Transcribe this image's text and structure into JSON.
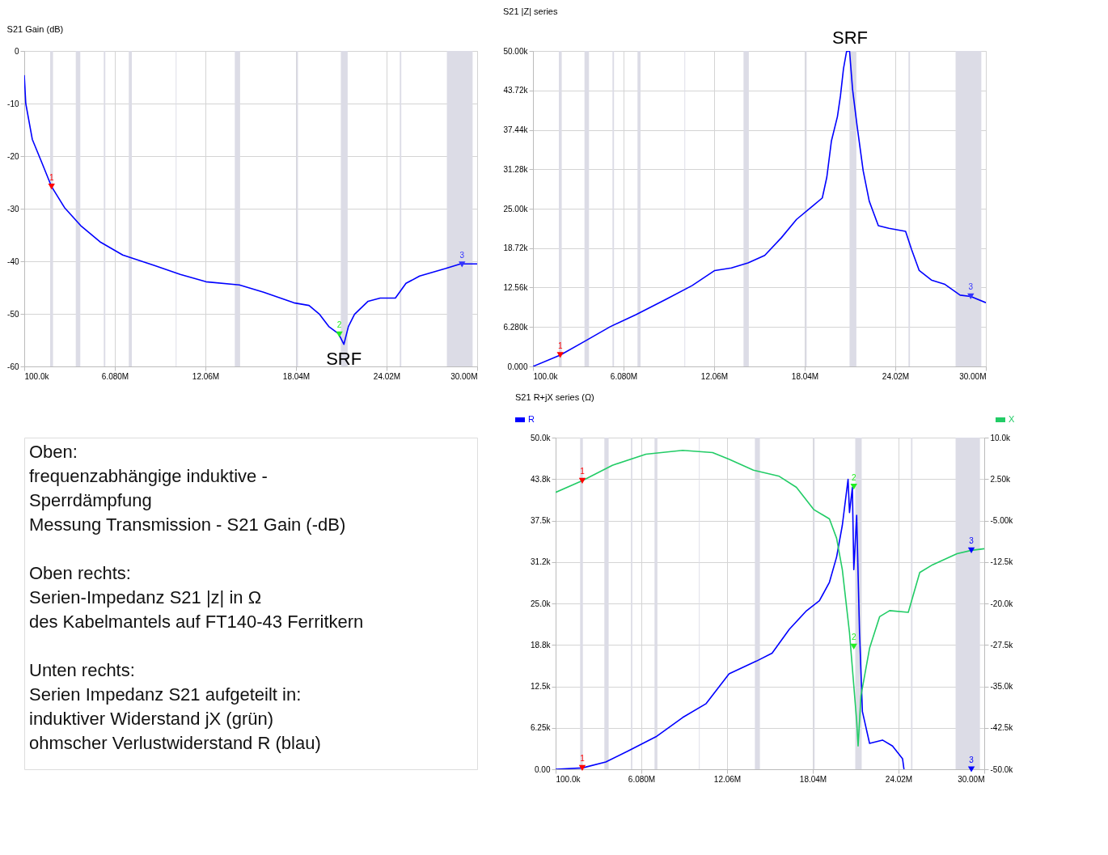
{
  "chart_data": [
    {
      "type": "line",
      "title": "S21 Gain (dB)",
      "grid": true,
      "xlim": [
        100000,
        30000000
      ],
      "xticks": [
        {
          "value": 100000,
          "label": "100.0k"
        },
        {
          "value": 6080000,
          "label": "6.080M"
        },
        {
          "value": 12060000,
          "label": "12.06M"
        },
        {
          "value": 18040000,
          "label": "18.04M"
        },
        {
          "value": 24020000,
          "label": "24.02M"
        },
        {
          "value": 30000000,
          "label": "30.00M"
        }
      ],
      "ylim": [
        -60,
        0
      ],
      "yticks": [
        -60,
        -50,
        -40,
        -30,
        -20,
        -10,
        0
      ],
      "bands": [
        {
          "axis": "x",
          "from": 1810000,
          "to": 2000000
        },
        {
          "axis": "x",
          "from": 3500000,
          "to": 3800000
        },
        {
          "axis": "x",
          "from": 5350000,
          "to": 5450000
        },
        {
          "axis": "x",
          "from": 7000000,
          "to": 7200000
        },
        {
          "axis": "x",
          "from": 10100000,
          "to": 10150000
        },
        {
          "axis": "x",
          "from": 14000000,
          "to": 14350000
        },
        {
          "axis": "x",
          "from": 18070000,
          "to": 18170000
        },
        {
          "axis": "x",
          "from": 21000000,
          "to": 21450000
        },
        {
          "axis": "x",
          "from": 24890000,
          "to": 24990000
        },
        {
          "axis": "x",
          "from": 28000000,
          "to": 29700000
        }
      ],
      "series": [
        {
          "type": "line",
          "color": "#0000ff",
          "x": [
            100000,
            200000,
            630000,
            1270000,
            1900000,
            2760000,
            3820000,
            5100000,
            6600000,
            8700000,
            10400000,
            12100000,
            14300000,
            15900000,
            17900000,
            18900000,
            19600000,
            20200000,
            20850000,
            21200000,
            21500000,
            21900000,
            22800000,
            23600000,
            24600000,
            25300000,
            26200000,
            27900000,
            28900000,
            30000000
          ],
          "values": [
            -4.6,
            -10,
            -16.8,
            -21.3,
            -25.8,
            -29.8,
            -33.2,
            -36.3,
            -38.8,
            -40.8,
            -42.5,
            -43.9,
            -44.5,
            -45.9,
            -47.9,
            -48.4,
            -50.1,
            -52.4,
            -53.8,
            -55.8,
            -52.4,
            -50.1,
            -47.6,
            -47.0,
            -47.0,
            -44.2,
            -42.8,
            -41.4,
            -40.5,
            -40.5
          ]
        },
        {
          "type": "scatter",
          "name": "1",
          "marker": "triangle",
          "color": "#ff0000",
          "x": [
            1900000
          ],
          "values": [
            -25.8
          ]
        },
        {
          "type": "scatter",
          "name": "2",
          "marker": "triangle",
          "color": "#22ee22",
          "x": [
            20900000
          ],
          "values": [
            -53.9
          ]
        },
        {
          "type": "scatter",
          "name": "3",
          "marker": "triangle",
          "color": "#3333ff",
          "x": [
            29000000
          ],
          "values": [
            -40.6
          ]
        }
      ],
      "annotations": [
        {
          "text": "SRF",
          "x": 21200000,
          "y": -58.6
        }
      ]
    },
    {
      "type": "line",
      "title": "S21 |Z| series",
      "grid": true,
      "xlim": [
        100000,
        30000000
      ],
      "xticks": [
        {
          "value": 100000,
          "label": "100.0k"
        },
        {
          "value": 6080000,
          "label": "6.080M"
        },
        {
          "value": 12060000,
          "label": "12.06M"
        },
        {
          "value": 18040000,
          "label": "18.04M"
        },
        {
          "value": 24020000,
          "label": "24.02M"
        },
        {
          "value": 30000000,
          "label": "30.00M"
        }
      ],
      "ylim": [
        0,
        50000
      ],
      "yticks": [
        {
          "value": 0,
          "label": "0.000"
        },
        {
          "value": 6280,
          "label": "6.280k"
        },
        {
          "value": 12560,
          "label": "12.56k"
        },
        {
          "value": 18720,
          "label": "18.72k"
        },
        {
          "value": 25000,
          "label": "25.00k"
        },
        {
          "value": 31280,
          "label": "31.28k"
        },
        {
          "value": 37440,
          "label": "37.44k"
        },
        {
          "value": 43720,
          "label": "43.72k"
        },
        {
          "value": 50000,
          "label": "50.00k"
        }
      ],
      "bands": [
        {
          "axis": "x",
          "from": 1810000,
          "to": 2000000
        },
        {
          "axis": "x",
          "from": 3500000,
          "to": 3800000
        },
        {
          "axis": "x",
          "from": 5350000,
          "to": 5450000
        },
        {
          "axis": "x",
          "from": 7000000,
          "to": 7200000
        },
        {
          "axis": "x",
          "from": 10100000,
          "to": 10150000
        },
        {
          "axis": "x",
          "from": 14000000,
          "to": 14350000
        },
        {
          "axis": "x",
          "from": 18070000,
          "to": 18170000
        },
        {
          "axis": "x",
          "from": 21000000,
          "to": 21450000
        },
        {
          "axis": "x",
          "from": 24890000,
          "to": 24990000
        },
        {
          "axis": "x",
          "from": 28000000,
          "to": 29700000
        }
      ],
      "series": [
        {
          "type": "line",
          "color": "#0000ff",
          "x": [
            100000,
            1900000,
            3450000,
            5200000,
            6900000,
            8860000,
            10600000,
            12100000,
            13200000,
            14300000,
            15400000,
            16500000,
            17500000,
            18600000,
            19200000,
            19500000,
            19800000,
            20200000,
            20400000,
            20600000,
            20800000,
            21000000,
            21200000,
            21500000,
            21900000,
            22300000,
            22900000,
            23600000,
            24700000,
            25100000,
            25600000,
            26400000,
            27300000,
            28300000,
            29000000,
            30000000
          ],
          "values": [
            0,
            1800,
            3900,
            6300,
            8200,
            10600,
            12800,
            15200,
            15600,
            16400,
            17600,
            20400,
            23300,
            25500,
            26700,
            30000,
            35700,
            39600,
            42900,
            47200,
            49900,
            50000,
            43900,
            38100,
            31000,
            26200,
            22300,
            21900,
            21400,
            18500,
            15200,
            13700,
            13000,
            11300,
            11100,
            10100
          ]
        },
        {
          "type": "scatter",
          "name": "1",
          "marker": "triangle",
          "color": "#ff0000",
          "x": [
            1900000
          ],
          "values": [
            1800
          ]
        },
        {
          "type": "scatter",
          "name": "3",
          "marker": "triangle",
          "color": "#3333ff",
          "x": [
            29000000
          ],
          "values": [
            11100
          ]
        }
      ],
      "annotations": [
        "SRF"
      ]
    },
    {
      "type": "other",
      "annotations": [
        "Oben:\nfrequenzabhängige induktive -\nSperrdämpfung\nMessung Transmission - S21 Gain (-dB)",
        "Oben rechts:\nSerien-Impedanz S21 |z| in Ω\ndes Kabelmantels auf FT140-43 Ferritkern",
        "Unten rechts:\nSerien Impedanz S21 aufgeteilt in:\ninduktiver Widerstand jX (grün)\nohmscher Verlustwiderstand R (blau)"
      ]
    },
    {
      "type": "line",
      "title": "S21 R+jX series (Ω)",
      "grid": true,
      "legend": "top",
      "xlim": [
        100000,
        30000000
      ],
      "xticks": [
        {
          "value": 100000,
          "label": "100.0k"
        },
        {
          "value": 6080000,
          "label": "6.080M"
        },
        {
          "value": 12060000,
          "label": "12.06M"
        },
        {
          "value": 18040000,
          "label": "18.04M"
        },
        {
          "value": 24020000,
          "label": "24.02M"
        },
        {
          "value": 30000000,
          "label": "30.00M"
        }
      ],
      "ylim": [
        0,
        50000
      ],
      "yticks": [
        {
          "value": 0,
          "label": "0.00"
        },
        {
          "value": 6250,
          "label": "6.25k"
        },
        {
          "value": 12500,
          "label": "12.5k"
        },
        {
          "value": 18750,
          "label": "18.8k"
        },
        {
          "value": 25000,
          "label": "25.0k"
        },
        {
          "value": 31250,
          "label": "31.2k"
        },
        {
          "value": 37500,
          "label": "37.5k"
        },
        {
          "value": 43750,
          "label": "43.8k"
        },
        {
          "value": 50000,
          "label": "50.0k"
        }
      ],
      "y2lim": [
        -50000,
        10000
      ],
      "y2ticks": [
        {
          "value": -50000,
          "label": "-50.0k"
        },
        {
          "value": -42500,
          "label": "-42.5k"
        },
        {
          "value": -35000,
          "label": "-35.0k"
        },
        {
          "value": -27500,
          "label": "-27.5k"
        },
        {
          "value": -20000,
          "label": "-20.0k"
        },
        {
          "value": -12500,
          "label": "-12.5k"
        },
        {
          "value": -5000,
          "label": "-5.00k"
        },
        {
          "value": 2500,
          "label": "2.50k"
        },
        {
          "value": 10000,
          "label": "10.0k"
        }
      ],
      "bands": [
        {
          "axis": "x",
          "from": 1810000,
          "to": 2000000
        },
        {
          "axis": "x",
          "from": 3500000,
          "to": 3800000
        },
        {
          "axis": "x",
          "from": 5350000,
          "to": 5450000
        },
        {
          "axis": "x",
          "from": 7000000,
          "to": 7200000
        },
        {
          "axis": "x",
          "from": 10100000,
          "to": 10150000
        },
        {
          "axis": "x",
          "from": 14000000,
          "to": 14350000
        },
        {
          "axis": "x",
          "from": 18070000,
          "to": 18170000
        },
        {
          "axis": "x",
          "from": 21000000,
          "to": 21450000
        },
        {
          "axis": "x",
          "from": 24890000,
          "to": 24990000
        },
        {
          "axis": "x",
          "from": 28000000,
          "to": 29700000
        }
      ],
      "series": [
        {
          "type": "line",
          "name": "R",
          "color": "#0000ff",
          "x": [
            100000,
            1960000,
            3600000,
            5200000,
            7100000,
            8960000,
            10600000,
            12200000,
            14100000,
            15200000,
            16400000,
            17600000,
            18500000,
            19200000,
            19700000,
            20100000,
            20500000,
            20600000,
            20800000,
            20900000,
            21100000,
            21300000,
            21500000,
            22000000,
            22900000,
            23600000,
            24300000,
            24400000
          ],
          "values": [
            0,
            200,
            1100,
            2800,
            4900,
            7800,
            9900,
            14400,
            16300,
            17500,
            21100,
            23900,
            25400,
            28200,
            32000,
            36800,
            43700,
            38700,
            42500,
            30100,
            38300,
            20600,
            8700,
            3900,
            4400,
            3500,
            1600,
            0
          ]
        },
        {
          "type": "line",
          "name": "X",
          "axis": "y2",
          "color": "#22cc66",
          "x": [
            100000,
            1960000,
            4060000,
            6400000,
            8960000,
            11050000,
            12200000,
            13900000,
            15700000,
            16900000,
            18100000,
            19200000,
            19700000,
            20100000,
            20600000,
            21100000,
            21200000,
            21400000,
            22000000,
            22700000,
            23400000,
            24700000,
            25500000,
            26400000,
            28100000,
            29100000,
            30000000
          ],
          "values": [
            100,
            2200,
            5000,
            7000,
            7700,
            7300,
            6100,
            4100,
            3000,
            1000,
            -3000,
            -4700,
            -8200,
            -13900,
            -25300,
            -41300,
            -45800,
            -36700,
            -28100,
            -22400,
            -21300,
            -21600,
            -14400,
            -13000,
            -11000,
            -10400,
            -10100
          ]
        },
        {
          "type": "scatter",
          "name": "1",
          "marker": "triangle",
          "color": "#ff0000",
          "x": [
            1960000
          ],
          "values": [
            200
          ]
        },
        {
          "type": "scatter",
          "name": "2",
          "marker": "triangle",
          "color": "#22ee22",
          "x": [
            20900000
          ],
          "values": [
            42600
          ]
        },
        {
          "type": "scatter",
          "name": "3",
          "marker": "triangle",
          "color": "#0000ff",
          "x": [
            29100000
          ],
          "values": [
            0
          ]
        },
        {
          "type": "scatter",
          "name": "1",
          "marker": "triangle",
          "axis": "y2",
          "color": "#ff0000",
          "x": [
            1960000
          ],
          "values": [
            2200
          ]
        },
        {
          "type": "scatter",
          "name": "2",
          "marker": "triangle",
          "axis": "y2",
          "color": "#22ee22",
          "x": [
            20900000
          ],
          "values": [
            -27800
          ]
        },
        {
          "type": "scatter",
          "name": "3",
          "marker": "triangle",
          "axis": "y2",
          "color": "#0000ff",
          "x": [
            29100000
          ],
          "values": [
            -10400
          ]
        }
      ]
    }
  ]
}
